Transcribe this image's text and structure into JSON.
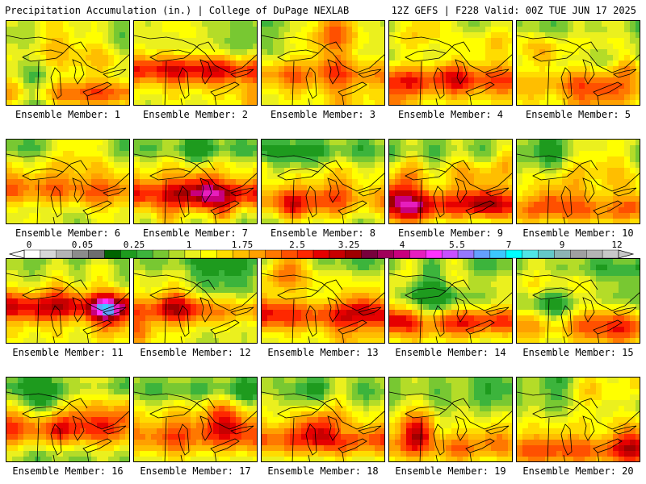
{
  "header": {
    "left": "Precipitation Accumulation (in.) | College of DuPage NEXLAB",
    "right": "12Z GEFS | F228 Valid: 00Z TUE JUN 17 2025"
  },
  "label_prefix": "Ensemble Member: ",
  "members": [
    1,
    2,
    3,
    4,
    5,
    6,
    7,
    8,
    9,
    10,
    11,
    12,
    13,
    14,
    15,
    16,
    17,
    18,
    19,
    20
  ],
  "colorbar": {
    "tick_labels": [
      "0",
      "0.05",
      "0.25",
      "1",
      "1.75",
      "2.5",
      "3.25",
      "4",
      "5.5",
      "7",
      "9",
      "12"
    ],
    "colors": [
      "#ffffff",
      "#d6d6d6",
      "#b4b4b4",
      "#8c8c8c",
      "#6e6e6e",
      "#006400",
      "#1e9b1e",
      "#3cb43c",
      "#78c832",
      "#b4dc28",
      "#ebf01e",
      "#ffff00",
      "#ffdc00",
      "#ffbe00",
      "#ffa000",
      "#ff7800",
      "#ff5000",
      "#ff2800",
      "#e60000",
      "#c80000",
      "#a00000",
      "#78003c",
      "#a0005a",
      "#c8007d",
      "#e61ebe",
      "#ff32ff",
      "#c850ff",
      "#9678ff",
      "#64a0ff",
      "#3cc8ff",
      "#00ffff",
      "#50e6e6",
      "#64c8c8",
      "#8cb4b4",
      "#a0a0a0",
      "#b4b4b4",
      "#c8c8c8"
    ]
  }
}
